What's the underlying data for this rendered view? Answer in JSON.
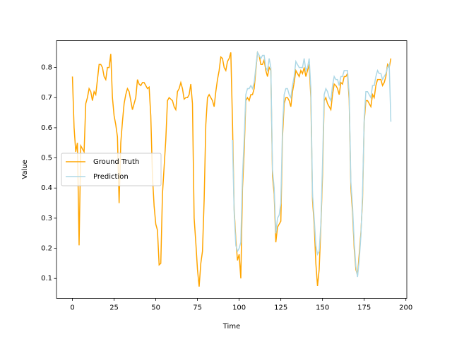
{
  "chart_data": {
    "type": "line",
    "xlabel": "Time",
    "ylabel": "Value",
    "x": [
      0,
      1,
      2,
      3,
      4,
      5,
      6,
      7,
      8,
      9,
      10,
      11,
      12,
      13,
      14,
      15,
      16,
      17,
      18,
      19,
      20,
      21,
      22,
      23,
      24,
      25,
      26,
      27,
      28,
      29,
      30,
      31,
      32,
      33,
      34,
      35,
      36,
      37,
      38,
      39,
      40,
      41,
      42,
      43,
      44,
      45,
      46,
      47,
      48,
      49,
      50,
      51,
      52,
      53,
      54,
      55,
      56,
      57,
      58,
      59,
      60,
      61,
      62,
      63,
      64,
      65,
      66,
      67,
      68,
      69,
      70,
      71,
      72,
      73,
      74,
      75,
      76,
      77,
      78,
      79,
      80,
      81,
      82,
      83,
      84,
      85,
      86,
      87,
      88,
      89,
      90,
      91,
      92,
      93,
      94,
      95,
      96,
      97,
      98,
      99,
      100,
      101,
      102,
      103,
      104,
      105,
      106,
      107,
      108,
      109,
      110,
      111,
      112,
      113,
      114,
      115,
      116,
      117,
      118,
      119,
      120,
      121,
      122,
      123,
      124,
      125,
      126,
      127,
      128,
      129,
      130,
      131,
      132,
      133,
      134,
      135,
      136,
      137,
      138,
      139,
      140,
      141,
      142,
      143,
      144,
      145,
      146,
      147,
      148,
      149,
      150,
      151,
      152,
      153,
      154,
      155,
      156,
      157,
      158,
      159,
      160,
      161,
      162,
      163,
      164,
      165,
      166,
      167,
      168,
      169,
      170,
      171,
      172,
      173,
      174,
      175,
      176,
      177,
      178,
      179,
      180,
      181,
      182,
      183,
      184,
      185,
      186,
      187,
      188,
      189,
      190,
      191
    ],
    "series": [
      {
        "name": "Ground Truth",
        "color": "#ffa500",
        "values": [
          0.77,
          0.6,
          0.52,
          0.55,
          0.21,
          0.54,
          0.53,
          0.52,
          0.68,
          0.7,
          0.73,
          0.72,
          0.69,
          0.72,
          0.71,
          0.76,
          0.81,
          0.81,
          0.8,
          0.77,
          0.76,
          0.8,
          0.8,
          0.845,
          0.7,
          0.64,
          0.61,
          0.57,
          0.35,
          0.55,
          0.62,
          0.68,
          0.71,
          0.73,
          0.72,
          0.69,
          0.66,
          0.68,
          0.7,
          0.76,
          0.745,
          0.74,
          0.75,
          0.75,
          0.74,
          0.73,
          0.735,
          0.64,
          0.44,
          0.34,
          0.28,
          0.26,
          0.145,
          0.15,
          0.38,
          0.47,
          0.56,
          0.69,
          0.7,
          0.695,
          0.69,
          0.67,
          0.66,
          0.72,
          0.73,
          0.75,
          0.73,
          0.695,
          0.7,
          0.7,
          0.71,
          0.745,
          0.68,
          0.3,
          0.22,
          0.13,
          0.073,
          0.15,
          0.19,
          0.36,
          0.61,
          0.7,
          0.71,
          0.7,
          0.69,
          0.67,
          0.72,
          0.76,
          0.79,
          0.835,
          0.83,
          0.8,
          0.79,
          0.82,
          0.83,
          0.85,
          0.62,
          0.33,
          0.23,
          0.16,
          0.18,
          0.1,
          0.4,
          0.52,
          0.69,
          0.7,
          0.69,
          0.71,
          0.71,
          0.73,
          0.79,
          0.85,
          0.84,
          0.81,
          0.81,
          0.825,
          0.79,
          0.77,
          0.8,
          0.79,
          0.44,
          0.38,
          0.22,
          0.27,
          0.28,
          0.29,
          0.57,
          0.68,
          0.7,
          0.7,
          0.69,
          0.67,
          0.72,
          0.75,
          0.79,
          0.78,
          0.77,
          0.79,
          0.78,
          0.8,
          0.77,
          0.79,
          0.81,
          0.7,
          0.36,
          0.28,
          0.15,
          0.075,
          0.13,
          0.27,
          0.44,
          0.69,
          0.7,
          0.68,
          0.67,
          0.66,
          0.71,
          0.745,
          0.74,
          0.73,
          0.71,
          0.75,
          0.745,
          0.77,
          0.77,
          0.78,
          0.69,
          0.4,
          0.32,
          0.2,
          0.13,
          0.11,
          0.18,
          0.25,
          0.36,
          0.62,
          0.69,
          0.69,
          0.68,
          0.67,
          0.71,
          0.7,
          0.74,
          0.76,
          0.76,
          0.76,
          0.74,
          0.75,
          0.77,
          0.81,
          0.8,
          0.83
        ]
      },
      {
        "name": "Prediction",
        "color": "#add8e6",
        "values": [
          null,
          null,
          null,
          null,
          null,
          null,
          null,
          null,
          null,
          null,
          null,
          null,
          null,
          null,
          null,
          null,
          null,
          null,
          null,
          null,
          null,
          null,
          null,
          null,
          null,
          null,
          null,
          null,
          null,
          null,
          null,
          null,
          null,
          null,
          null,
          null,
          null,
          null,
          null,
          null,
          null,
          null,
          null,
          null,
          null,
          null,
          null,
          null,
          null,
          null,
          null,
          null,
          null,
          null,
          null,
          null,
          null,
          null,
          null,
          null,
          null,
          null,
          null,
          null,
          null,
          null,
          null,
          null,
          null,
          null,
          null,
          null,
          null,
          null,
          null,
          null,
          null,
          null,
          null,
          null,
          null,
          null,
          null,
          null,
          null,
          null,
          null,
          null,
          null,
          null,
          null,
          null,
          null,
          null,
          null,
          null,
          0.56,
          0.32,
          0.21,
          0.19,
          0.2,
          0.22,
          0.44,
          0.56,
          0.71,
          0.73,
          0.73,
          0.74,
          0.73,
          0.75,
          0.8,
          0.85,
          0.84,
          0.83,
          0.84,
          0.84,
          0.8,
          0.79,
          0.83,
          0.8,
          0.46,
          0.4,
          0.25,
          0.3,
          0.31,
          0.35,
          0.6,
          0.71,
          0.73,
          0.73,
          0.71,
          0.7,
          0.74,
          0.77,
          0.82,
          0.81,
          0.8,
          0.8,
          0.8,
          0.83,
          0.79,
          0.8,
          0.83,
          0.73,
          0.38,
          0.3,
          0.21,
          0.18,
          0.19,
          0.28,
          0.48,
          0.71,
          0.73,
          0.72,
          0.7,
          0.69,
          0.74,
          0.77,
          0.76,
          0.76,
          0.74,
          0.77,
          0.77,
          0.79,
          0.79,
          0.79,
          0.71,
          0.42,
          0.34,
          0.22,
          0.14,
          0.105,
          0.16,
          0.24,
          0.38,
          0.63,
          0.72,
          0.72,
          0.71,
          0.7,
          0.74,
          0.74,
          0.77,
          0.79,
          0.78,
          0.78,
          0.76,
          0.77,
          0.78,
          0.8,
          0.81,
          0.62
        ]
      }
    ],
    "xlim": [
      -9.55,
      200.55
    ],
    "ylim": [
      0.034,
      0.889
    ],
    "xticks": [
      0,
      25,
      50,
      75,
      100,
      125,
      150,
      175,
      200
    ],
    "yticks": [
      0.1,
      0.2,
      0.3,
      0.4,
      0.5,
      0.6,
      0.7,
      0.8
    ],
    "grid": false,
    "legend": "center left"
  }
}
